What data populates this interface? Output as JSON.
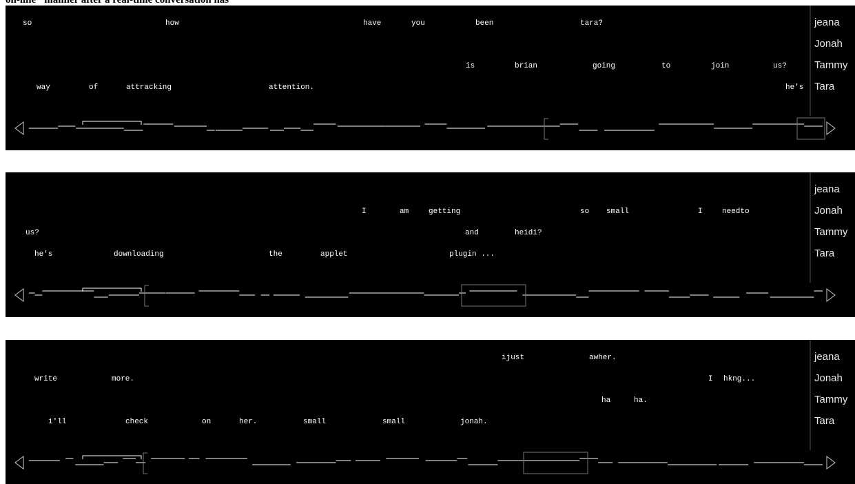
{
  "header_text": "on-line\" manner after a real-time conversation has",
  "panels": [
    {
      "rows": [
        [
          "so",
          "how",
          "have",
          "you",
          "been",
          "tara?"
        ],
        [],
        [
          "is",
          "brian",
          "going",
          "to",
          "join",
          "us?"
        ],
        [
          "way",
          "of",
          "attracking",
          "attention.",
          "he's"
        ]
      ],
      "names": [
        "jeana",
        "Jonah",
        "Tammy",
        "Tara"
      ]
    },
    {
      "rows": [
        [],
        [
          "I",
          "am",
          "getting",
          "so",
          "small",
          "I",
          "needto"
        ],
        [
          "us?",
          "and",
          "heidi?"
        ],
        [
          "he's",
          "downloading",
          "the",
          "applet",
          "plugin ..."
        ]
      ],
      "names": [
        "jeana",
        "Jonah",
        "Tammy",
        "Tara"
      ]
    },
    {
      "rows": [
        [
          "ijust",
          "awher."
        ],
        [
          "write",
          "more.",
          "I",
          "hkng..."
        ],
        [
          "ha",
          "ha."
        ],
        [
          "i'll",
          "check",
          "on",
          "her.",
          "small",
          "small",
          "jonah."
        ]
      ],
      "names": [
        "jeana",
        "Jonah",
        "Tammy",
        "Tara"
      ]
    }
  ]
}
